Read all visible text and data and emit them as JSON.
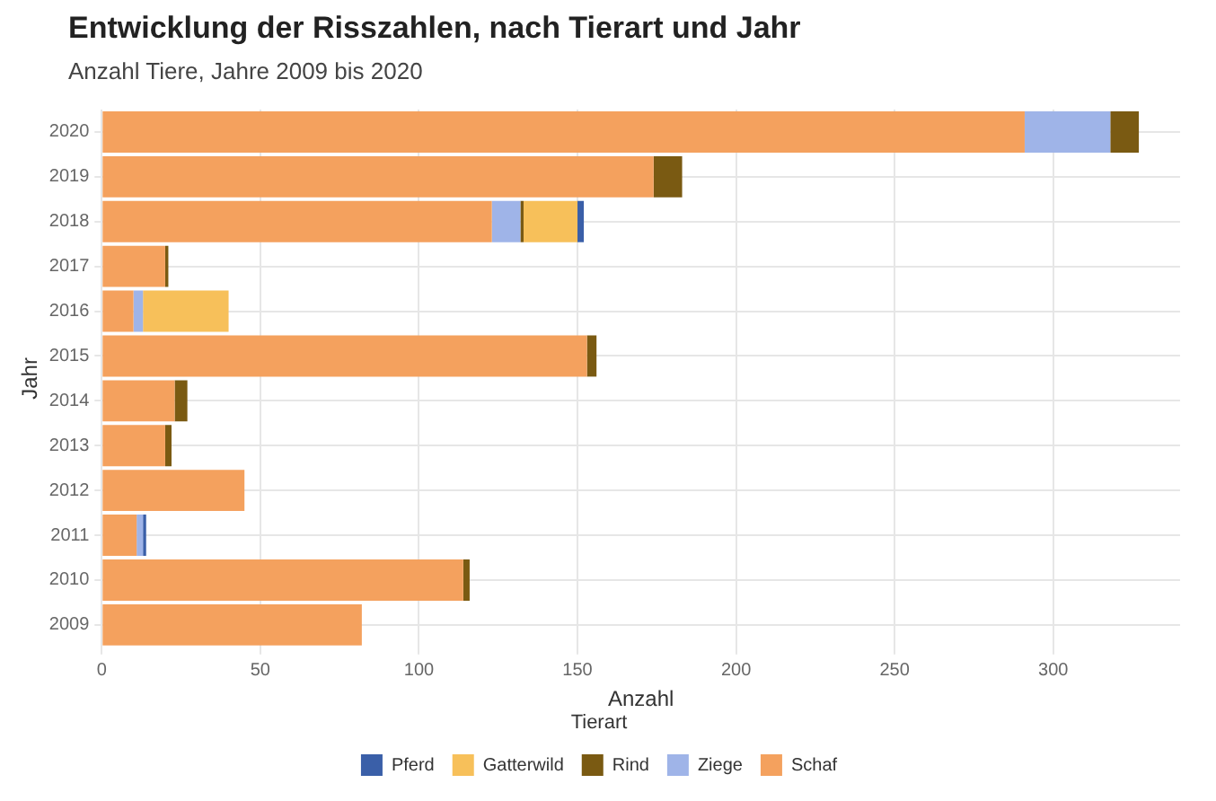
{
  "chart_data": {
    "type": "bar",
    "orientation": "horizontal",
    "stacked": true,
    "title": "Entwicklung der Risszahlen, nach Tierart und Jahr",
    "subtitle": "Anzahl Tiere, Jahre 2009 bis 2020",
    "xlabel": "Anzahl",
    "ylabel": "Jahr",
    "legend_title": "Tierart",
    "legend": "bottom",
    "grid": true,
    "categories": [
      "2020",
      "2019",
      "2018",
      "2017",
      "2016",
      "2015",
      "2014",
      "2013",
      "2012",
      "2011",
      "2010",
      "2009"
    ],
    "xlim": [
      0,
      340
    ],
    "xticks": [
      0,
      50,
      100,
      150,
      200,
      250,
      300
    ],
    "series": [
      {
        "name": "Schaf",
        "color": "#f4a15e",
        "values": [
          291,
          174,
          123,
          20,
          10,
          153,
          23,
          20,
          45,
          11,
          114,
          82
        ]
      },
      {
        "name": "Ziege",
        "color": "#9fb4e8",
        "values": [
          27,
          null,
          9,
          null,
          3,
          null,
          null,
          null,
          null,
          2,
          null,
          null
        ]
      },
      {
        "name": "Rind",
        "color": "#7a5a12",
        "values": [
          9,
          9,
          1,
          1,
          null,
          3,
          4,
          2,
          null,
          null,
          2,
          null
        ]
      },
      {
        "name": "Gatterwild",
        "color": "#f7c05a",
        "values": [
          null,
          null,
          17,
          null,
          27,
          null,
          null,
          null,
          null,
          null,
          null,
          null
        ]
      },
      {
        "name": "Pferd",
        "color": "#3a5fa8",
        "values": [
          null,
          null,
          2,
          null,
          null,
          null,
          null,
          null,
          null,
          1,
          null,
          null
        ]
      }
    ]
  }
}
